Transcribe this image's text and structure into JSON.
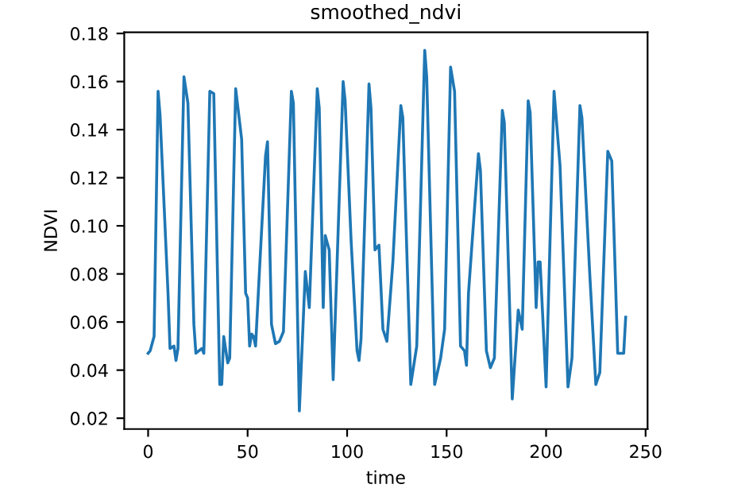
{
  "chart_data": {
    "type": "line",
    "title": "smoothed_ndvi",
    "xlabel": "time",
    "ylabel": "NDVI",
    "xlim": [
      -12,
      251
    ],
    "ylim": [
      0.0155,
      0.1805
    ],
    "xticks": [
      0,
      50,
      100,
      150,
      200,
      250
    ],
    "yticks": [
      {
        "value": 0.02,
        "label": "0.02"
      },
      {
        "value": 0.04,
        "label": "0.04"
      },
      {
        "value": 0.06,
        "label": "0.06"
      },
      {
        "value": 0.08,
        "label": "0.08"
      },
      {
        "value": 0.1,
        "label": "0.10"
      },
      {
        "value": 0.12,
        "label": "0.12"
      },
      {
        "value": 0.14,
        "label": "0.14"
      },
      {
        "value": 0.16,
        "label": "0.16"
      },
      {
        "value": 0.18,
        "label": "0.18"
      }
    ],
    "grid": false,
    "legend": false,
    "marker": "none",
    "line_style": "solid",
    "series": [
      {
        "color": "#1f77b4",
        "x": [
          0,
          1,
          3,
          5,
          6,
          10,
          11,
          13,
          14,
          15,
          18,
          20,
          23,
          24,
          27,
          28,
          31,
          33,
          36,
          37,
          38,
          40,
          41,
          44,
          47,
          49,
          50,
          51,
          52,
          53,
          54,
          56,
          59,
          60,
          62,
          64,
          66,
          68,
          72,
          73,
          76,
          79,
          81,
          85,
          86,
          88,
          89,
          91,
          93,
          98,
          99,
          102,
          105,
          106,
          107,
          111,
          112,
          114,
          116,
          118,
          120,
          123,
          127,
          128,
          132,
          135,
          139,
          140,
          144,
          147,
          149,
          152,
          154,
          157,
          159,
          160,
          161,
          166,
          167,
          170,
          172,
          174,
          178,
          179,
          183,
          186,
          188,
          191,
          192,
          195,
          196,
          197,
          200,
          204,
          207,
          211,
          213,
          217,
          218,
          222,
          225,
          227,
          231,
          233,
          236,
          237,
          239,
          240
        ],
        "values": [
          0.047,
          0.048,
          0.054,
          0.156,
          0.146,
          0.072,
          0.049,
          0.05,
          0.044,
          0.049,
          0.162,
          0.151,
          0.059,
          0.047,
          0.049,
          0.047,
          0.156,
          0.155,
          0.034,
          0.034,
          0.054,
          0.043,
          0.045,
          0.157,
          0.136,
          0.072,
          0.07,
          0.05,
          0.055,
          0.054,
          0.05,
          0.082,
          0.129,
          0.135,
          0.059,
          0.051,
          0.052,
          0.056,
          0.156,
          0.151,
          0.023,
          0.081,
          0.066,
          0.157,
          0.149,
          0.066,
          0.096,
          0.09,
          0.036,
          0.16,
          0.152,
          0.094,
          0.048,
          0.044,
          0.053,
          0.159,
          0.149,
          0.09,
          0.092,
          0.057,
          0.052,
          0.085,
          0.15,
          0.145,
          0.034,
          0.05,
          0.173,
          0.162,
          0.034,
          0.045,
          0.057,
          0.166,
          0.156,
          0.05,
          0.048,
          0.042,
          0.072,
          0.13,
          0.123,
          0.048,
          0.041,
          0.045,
          0.148,
          0.143,
          0.028,
          0.065,
          0.057,
          0.152,
          0.147,
          0.066,
          0.085,
          0.085,
          0.033,
          0.156,
          0.125,
          0.033,
          0.045,
          0.15,
          0.145,
          0.079,
          0.034,
          0.039,
          0.131,
          0.127,
          0.047,
          0.047,
          0.047,
          0.062
        ]
      }
    ]
  }
}
